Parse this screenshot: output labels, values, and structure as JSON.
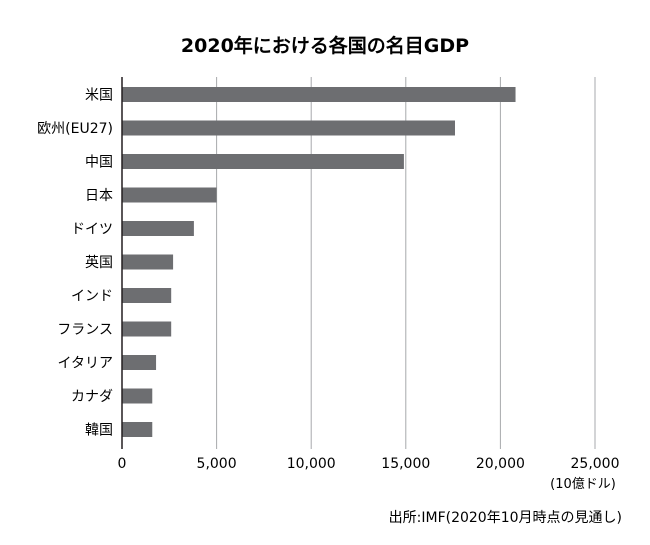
{
  "chart_data": {
    "type": "bar",
    "orientation": "horizontal",
    "title": "2020年における各国の名目GDP",
    "categories": [
      "米国",
      "欧州(EU27)",
      "中国",
      "日本",
      "ドイツ",
      "英国",
      "インド",
      "フランス",
      "イタリア",
      "カナダ",
      "韓国"
    ],
    "values": [
      20800,
      17600,
      14900,
      5000,
      3800,
      2700,
      2600,
      2600,
      1800,
      1600,
      1600
    ],
    "xlim": [
      0,
      25000
    ],
    "xticks": [
      0,
      5000,
      10000,
      15000,
      20000,
      25000
    ],
    "xtick_labels": [
      "0",
      "5,000",
      "10,000",
      "15,000",
      "20,000",
      "25,000"
    ],
    "unit_label": "(10億ドル)",
    "source": "出所:IMF(2020年10月時点の見通し)",
    "grid": "vertical",
    "bar_color": "#6d6e71",
    "grid_color": "#a7a9ac",
    "axis_color": "#231f20"
  }
}
